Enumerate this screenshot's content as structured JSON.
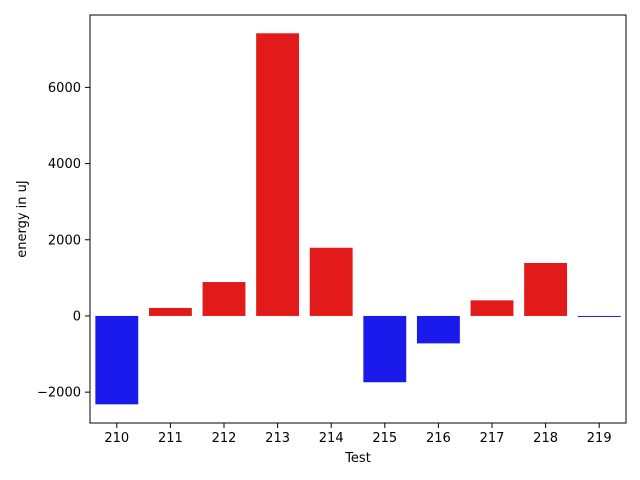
{
  "chart_data": {
    "type": "bar",
    "xlabel": "Test",
    "ylabel": "energy in uJ",
    "categories": [
      "210",
      "211",
      "212",
      "213",
      "214",
      "215",
      "216",
      "217",
      "218",
      "219"
    ],
    "values": [
      -2320,
      210,
      890,
      7420,
      1790,
      -1740,
      -720,
      410,
      1390,
      -20
    ],
    "colors": [
      "#1a1aed",
      "#e31a1a",
      "#e31a1a",
      "#e31a1a",
      "#e31a1a",
      "#1a1aed",
      "#1a1aed",
      "#e31a1a",
      "#e31a1a",
      "#1a1aed"
    ],
    "yticks": [
      -2000,
      0,
      2000,
      4000,
      6000
    ],
    "ytick_labels": [
      "−2000",
      "0",
      "2000",
      "4000",
      "6000"
    ],
    "ylim": [
      -2810,
      7900
    ],
    "grid": false,
    "legend": "none"
  }
}
